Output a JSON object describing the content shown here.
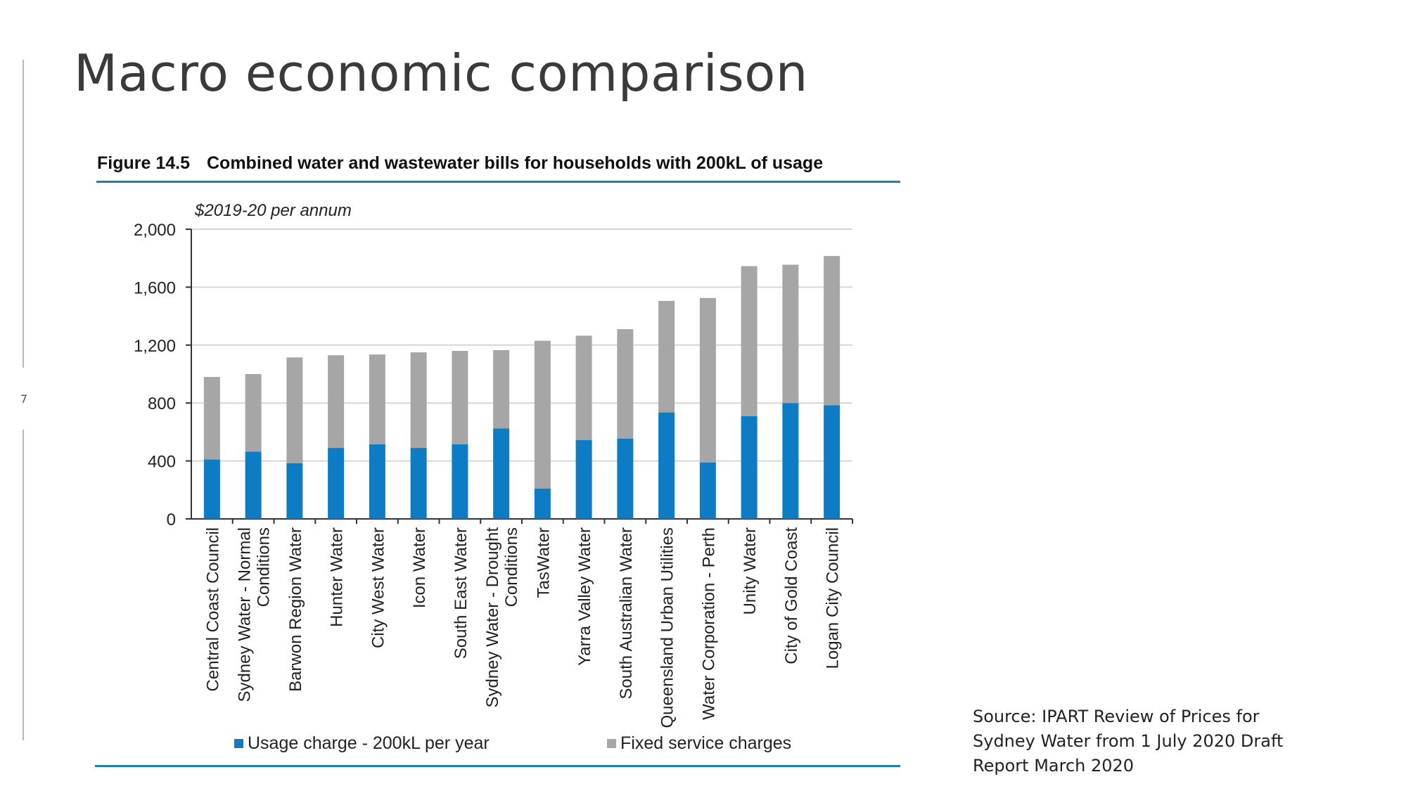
{
  "slide": {
    "title": "Macro economic comparison",
    "page_number": "7",
    "source": "Source: IPART Review of Prices for Sydney Water from 1 July 2020 Draft Report March 2020"
  },
  "figure": {
    "number": "Figure 14.5",
    "caption": "Combined water and wastewater bills for households with 200kL of usage"
  },
  "colors": {
    "usage": "#0e7cc4",
    "fixed": "#a6a6a6",
    "rule": "#1a80b8"
  },
  "chart_data": {
    "type": "bar",
    "stacked": true,
    "unit_label": "$2019-20 per annum",
    "ylim": [
      0,
      2000
    ],
    "yticks": [
      0,
      400,
      800,
      1200,
      1600,
      2000
    ],
    "ytick_labels": [
      "0",
      "400",
      "800",
      "1,200",
      "1,600",
      "2,000"
    ],
    "grid": true,
    "legend_position": "bottom",
    "categories": [
      [
        "Central Coast Council"
      ],
      [
        "Sydney Water - Normal",
        "Conditions"
      ],
      [
        "Barwon Region Water"
      ],
      [
        "Hunter Water"
      ],
      [
        "City West Water"
      ],
      [
        "Icon Water"
      ],
      [
        "South East Water"
      ],
      [
        "Sydney Water - Drought",
        "Conditions"
      ],
      [
        "TasWater"
      ],
      [
        "Yarra Valley Water"
      ],
      [
        "South Australian Water"
      ],
      [
        "Queensland Urban Utilities"
      ],
      [
        "Water Corporation - Perth"
      ],
      [
        "Unity Water"
      ],
      [
        "City of Gold Coast"
      ],
      [
        "Logan City Council"
      ]
    ],
    "series": [
      {
        "name": "Usage charge - 200kL per year",
        "values": [
          410,
          465,
          385,
          490,
          515,
          490,
          515,
          625,
          210,
          545,
          555,
          735,
          390,
          710,
          800,
          785
        ]
      },
      {
        "name": "Fixed service charges",
        "values": [
          570,
          535,
          730,
          640,
          620,
          660,
          645,
          540,
          1020,
          720,
          755,
          770,
          1135,
          1035,
          955,
          1030
        ]
      }
    ]
  }
}
